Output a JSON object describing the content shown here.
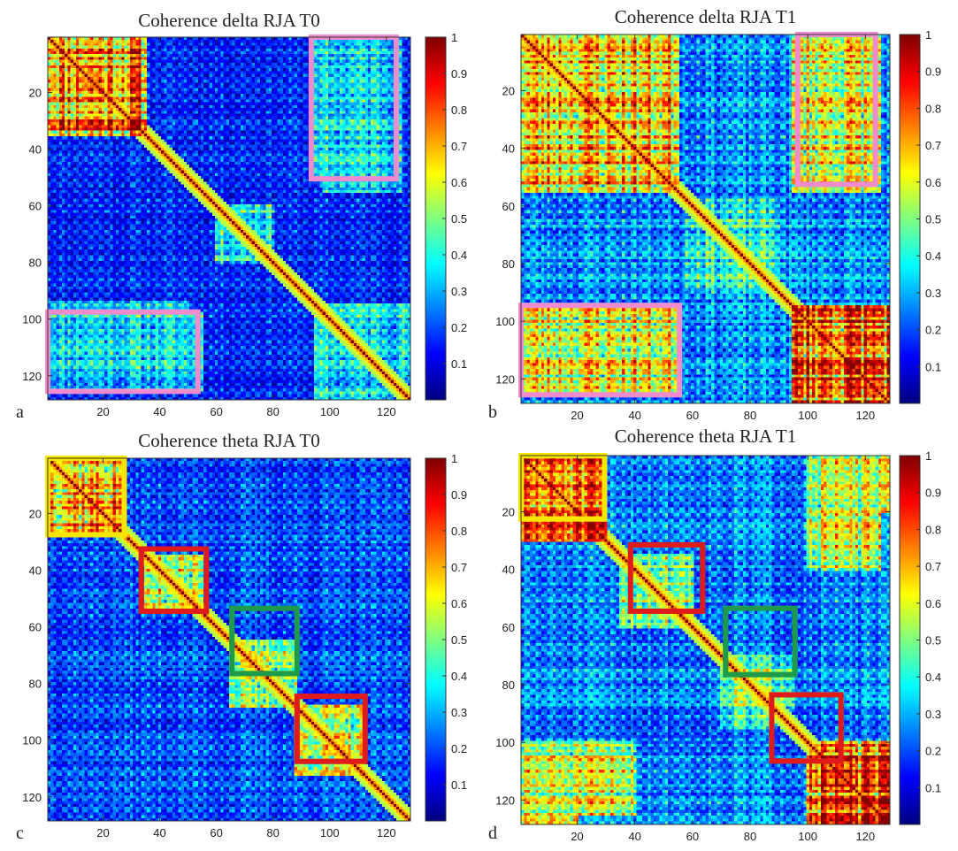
{
  "chart_data": [
    {
      "type": "heatmap",
      "panel_label": "a",
      "title": "Coherence delta RJA T0",
      "matrix_size": 128,
      "xlim": [
        0.5,
        128.5
      ],
      "ylim": [
        0.5,
        128.5
      ],
      "x_ticks": [
        20,
        40,
        60,
        80,
        100,
        120
      ],
      "y_ticks": [
        20,
        40,
        60,
        80,
        100,
        120
      ],
      "colorbar": {
        "range": [
          0,
          1
        ],
        "ticks": [
          0.1,
          0.2,
          0.3,
          0.4,
          0.5,
          0.6,
          0.7,
          0.8,
          0.9,
          1
        ],
        "tick_labels": [
          "0.1",
          "0.2",
          "0.3",
          "0.4",
          "0.5",
          "0.6",
          "0.7",
          "0.8",
          "0.9",
          "1"
        ]
      },
      "seed": 11,
      "background": 0.18,
      "blocks": [
        {
          "range": [
            1,
            35
          ],
          "value": 0.85
        },
        {
          "range": [
            60,
            80
          ],
          "value": 0.45
        },
        {
          "range": [
            95,
            128
          ],
          "value": 0.4
        }
      ],
      "offdiag": [
        {
          "rows": [
            1,
            50
          ],
          "cols": [
            94,
            123
          ],
          "value": 0.35
        },
        {
          "rows": [
            98,
            125
          ],
          "cols": [
            1,
            55
          ],
          "value": 0.4
        }
      ],
      "highlights": [
        {
          "color": "#f08ccd",
          "rows": [
            1,
            50
          ],
          "cols": [
            94,
            123
          ]
        },
        {
          "color": "#f08ccd",
          "rows": [
            98,
            125
          ],
          "cols": [
            1,
            53
          ]
        }
      ]
    },
    {
      "type": "heatmap",
      "panel_label": "b",
      "title": "Coherence delta RJA T1",
      "matrix_size": 128,
      "xlim": [
        0.5,
        128.5
      ],
      "ylim": [
        0.5,
        128.5
      ],
      "x_ticks": [
        20,
        40,
        60,
        80,
        100,
        120
      ],
      "y_ticks": [
        20,
        40,
        60,
        80,
        100,
        120
      ],
      "colorbar": {
        "range": [
          0,
          1
        ],
        "ticks": [
          0.1,
          0.2,
          0.3,
          0.4,
          0.5,
          0.6,
          0.7,
          0.8,
          0.9,
          1
        ],
        "tick_labels": [
          "0.1",
          "0.2",
          "0.3",
          "0.4",
          "0.5",
          "0.6",
          "0.7",
          "0.8",
          "0.9",
          "1"
        ]
      },
      "seed": 23,
      "background": 0.3,
      "blocks": [
        {
          "range": [
            1,
            55
          ],
          "value": 0.75
        },
        {
          "range": [
            58,
            90
          ],
          "value": 0.45
        },
        {
          "range": [
            95,
            128
          ],
          "value": 0.88
        }
      ],
      "offdiag": [
        {
          "rows": [
            1,
            52
          ],
          "cols": [
            97,
            123
          ],
          "value": 0.62
        },
        {
          "rows": [
            95,
            125
          ],
          "cols": [
            1,
            55
          ],
          "value": 0.68
        }
      ],
      "highlights": [
        {
          "color": "#f08ccd",
          "rows": [
            1,
            52
          ],
          "cols": [
            97,
            123
          ]
        },
        {
          "color": "#f08ccd",
          "rows": [
            95,
            125
          ],
          "cols": [
            1,
            55
          ]
        }
      ]
    },
    {
      "type": "heatmap",
      "panel_label": "c",
      "title": "Coherence theta RJA T0",
      "matrix_size": 128,
      "xlim": [
        0.5,
        128.5
      ],
      "ylim": [
        0.5,
        128.5
      ],
      "x_ticks": [
        20,
        40,
        60,
        80,
        100,
        120
      ],
      "y_ticks": [
        20,
        40,
        60,
        80,
        100,
        120
      ],
      "colorbar": {
        "range": [
          0,
          1
        ],
        "ticks": [
          0.1,
          0.2,
          0.3,
          0.4,
          0.5,
          0.6,
          0.7,
          0.8,
          0.9,
          1
        ],
        "tick_labels": [
          "0.1",
          "0.2",
          "0.3",
          "0.4",
          "0.5",
          "0.6",
          "0.7",
          "0.8",
          "0.9",
          "1"
        ]
      },
      "seed": 37,
      "background": 0.22,
      "blocks": [
        {
          "range": [
            1,
            28
          ],
          "value": 0.82
        },
        {
          "range": [
            35,
            55
          ],
          "value": 0.6
        },
        {
          "range": [
            65,
            88
          ],
          "value": 0.55
        },
        {
          "range": [
            88,
            112
          ],
          "value": 0.6
        }
      ],
      "offdiag": [],
      "highlights": [
        {
          "color": "#f7e600",
          "rows": [
            1,
            27
          ],
          "cols": [
            1,
            27
          ]
        },
        {
          "color": "#e01b1b",
          "rows": [
            33,
            54
          ],
          "cols": [
            34,
            56
          ]
        },
        {
          "color": "#1e9a4a",
          "rows": [
            54,
            76
          ],
          "cols": [
            66,
            88
          ]
        },
        {
          "color": "#e01b1b",
          "rows": [
            85,
            107
          ],
          "cols": [
            89,
            112
          ]
        }
      ]
    },
    {
      "type": "heatmap",
      "panel_label": "d",
      "title": "Coherence theta RJA T1",
      "matrix_size": 128,
      "xlim": [
        0.5,
        128.5
      ],
      "ylim": [
        0.5,
        128.5
      ],
      "x_ticks": [
        20,
        40,
        60,
        80,
        100,
        120
      ],
      "y_ticks": [
        20,
        40,
        60,
        80,
        100,
        120
      ],
      "colorbar": {
        "range": [
          0,
          1
        ],
        "ticks": [
          0.1,
          0.2,
          0.3,
          0.4,
          0.5,
          0.6,
          0.7,
          0.8,
          0.9,
          1
        ],
        "tick_labels": [
          "0.1",
          "0.2",
          "0.3",
          "0.4",
          "0.5",
          "0.6",
          "0.7",
          "0.8",
          "0.9",
          "1"
        ]
      },
      "seed": 51,
      "background": 0.28,
      "blocks": [
        {
          "range": [
            1,
            30
          ],
          "value": 0.8
        },
        {
          "range": [
            35,
            60
          ],
          "value": 0.58
        },
        {
          "range": [
            70,
            95
          ],
          "value": 0.52
        },
        {
          "range": [
            100,
            128
          ],
          "value": 0.85
        }
      ],
      "offdiag": [
        {
          "rows": [
            100,
            125
          ],
          "cols": [
            1,
            40
          ],
          "value": 0.6
        },
        {
          "rows": [
            1,
            20
          ],
          "cols": [
            100,
            128
          ],
          "value": 0.6
        }
      ],
      "highlights": [
        {
          "color": "#f7e600",
          "rows": [
            1,
            22
          ],
          "cols": [
            1,
            29
          ]
        },
        {
          "color": "#e01b1b",
          "rows": [
            32,
            54
          ],
          "cols": [
            39,
            63
          ]
        },
        {
          "color": "#1e9a4a",
          "rows": [
            54,
            76
          ],
          "cols": [
            72,
            95
          ]
        },
        {
          "color": "#e01b1b",
          "rows": [
            84,
            106
          ],
          "cols": [
            88,
            111
          ]
        }
      ]
    }
  ]
}
